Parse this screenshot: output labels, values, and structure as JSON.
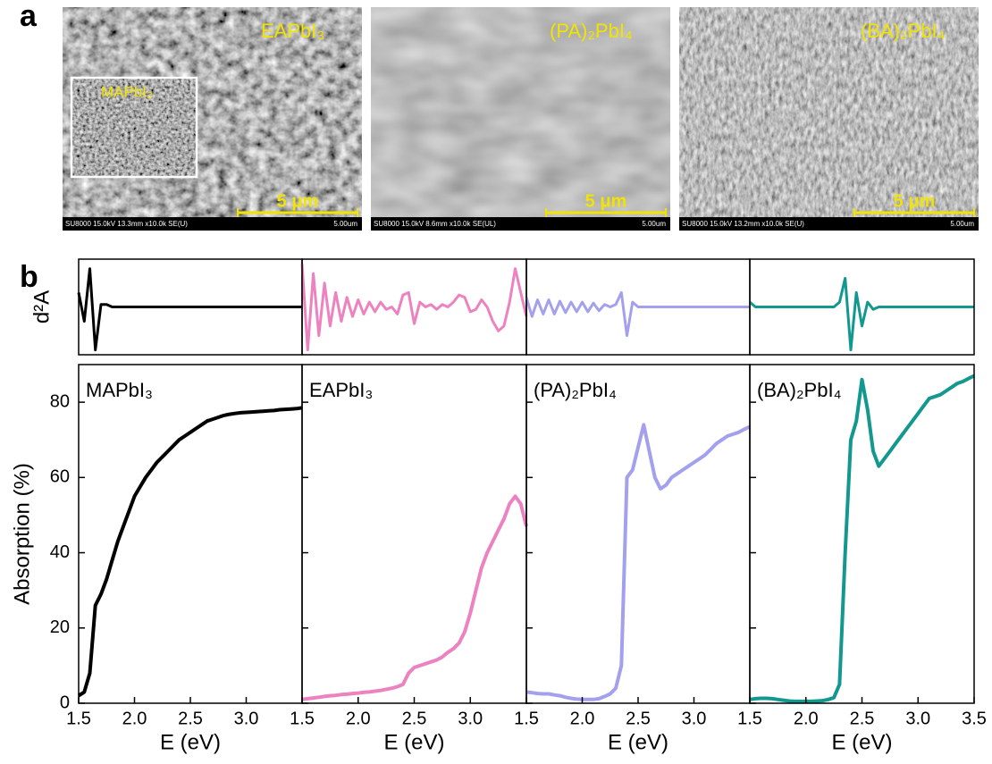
{
  "panel_labels": [
    "a",
    "b"
  ],
  "sem_images": [
    {
      "label": "EAPbI₃",
      "inset_label": "MAPbI₃",
      "scale_bar": "5 μm",
      "info": "SU8000 15.0kV 13.3mm x10.0k SE(U)",
      "info_right": "5.00um"
    },
    {
      "label": "(PA)₂PbI₄",
      "scale_bar": "5 μm",
      "info": "SU8000 15.0kV 8.6mm x10.0k SE(UL)",
      "info_right": "5.00um"
    },
    {
      "label": "(BA)₂PbI₄",
      "scale_bar": "5 μm",
      "info": "SU8000 15.0kV 13.2mm x10.0k SE(U)",
      "info_right": "5.00um"
    }
  ],
  "chart_data": [
    {
      "type": "line",
      "annotation": "MAPbI₃",
      "color": "#000000",
      "ylabel": "Absorption (%)",
      "d2a_label": "d²A",
      "xlabel": "E (eV)",
      "xlim": [
        1.5,
        3.5
      ],
      "xticks": [
        1.5,
        {
          "value": 2,
          "label": "2.0"
        },
        2.5,
        {
          "value": 3,
          "label": "3.0"
        }
      ],
      "ylim": [
        0,
        90
      ],
      "yticks": [
        0,
        20,
        40,
        60,
        80
      ],
      "d2a_ylim": [
        -1,
        1
      ],
      "x": [
        1.5,
        1.55,
        1.6,
        1.65,
        1.7,
        1.75,
        1.8,
        1.85,
        1.9,
        1.95,
        2.0,
        2.05,
        2.1,
        2.15,
        2.2,
        2.25,
        2.3,
        2.35,
        2.4,
        2.45,
        2.5,
        2.55,
        2.6,
        2.65,
        2.7,
        2.75,
        2.8,
        2.85,
        2.9,
        2.95,
        3.0,
        3.05,
        3.1,
        3.15,
        3.2,
        3.25,
        3.3,
        3.35,
        3.4,
        3.45,
        3.5
      ],
      "values": [
        2,
        3,
        8,
        26,
        29,
        33,
        38,
        43,
        47,
        51,
        55,
        57.5,
        60,
        62,
        64,
        65.5,
        67,
        68.5,
        70,
        71,
        72,
        73,
        74,
        75,
        75.5,
        76,
        76.5,
        76.8,
        77,
        77.2,
        77.3,
        77.4,
        77.5,
        77.6,
        77.7,
        77.8,
        78,
        78.1,
        78.2,
        78.3,
        78.5
      ],
      "d2a_values": [
        0.3,
        -0.3,
        0.8,
        -0.9,
        0.05,
        0.05,
        0,
        0,
        0,
        0,
        0,
        0,
        0,
        0,
        0,
        0,
        0,
        0,
        0,
        0,
        0,
        0,
        0,
        0,
        0,
        0,
        0,
        0,
        0,
        0,
        0,
        0,
        0,
        0,
        0,
        0,
        0,
        0,
        0,
        0,
        0
      ]
    },
    {
      "type": "line",
      "annotation": "EAPbI₃",
      "color": "#ec82c0",
      "xlabel": "E (eV)",
      "xlim": [
        1.5,
        3.5
      ],
      "xticks": [
        1.5,
        {
          "value": 2,
          "label": "2.0"
        },
        2.5,
        {
          "value": 3,
          "label": "3.0"
        }
      ],
      "ylim": [
        0,
        90
      ],
      "d2a_ylim": [
        -1,
        1
      ],
      "x": [
        1.5,
        1.55,
        1.6,
        1.65,
        1.7,
        1.75,
        1.8,
        1.85,
        1.9,
        1.95,
        2.0,
        2.05,
        2.1,
        2.15,
        2.2,
        2.25,
        2.3,
        2.35,
        2.4,
        2.45,
        2.5,
        2.55,
        2.6,
        2.65,
        2.7,
        2.75,
        2.8,
        2.85,
        2.9,
        2.95,
        3.0,
        3.05,
        3.1,
        3.15,
        3.2,
        3.25,
        3.3,
        3.35,
        3.4,
        3.45,
        3.5
      ],
      "values": [
        1,
        1.2,
        1.4,
        1.6,
        1.8,
        2,
        2.1,
        2.3,
        2.4,
        2.6,
        2.7,
        2.9,
        3,
        3.2,
        3.4,
        3.7,
        4,
        4.4,
        5,
        8,
        9.5,
        10,
        10.5,
        11,
        11.5,
        12.3,
        13.5,
        14.5,
        16,
        19,
        24,
        30,
        36,
        40,
        43,
        46,
        49,
        53,
        55,
        53,
        47
      ],
      "d2a_values": [
        0.9,
        -0.9,
        0.7,
        -0.6,
        0.5,
        -0.4,
        0.3,
        -0.3,
        0.2,
        -0.2,
        0.15,
        -0.15,
        0.1,
        -0.1,
        0.1,
        -0.05,
        0,
        -0.15,
        0.25,
        0.3,
        -0.35,
        0.1,
        0,
        0.05,
        -0.05,
        0.05,
        0,
        0.1,
        0.25,
        0.2,
        -0.1,
        -0.05,
        0.15,
        0,
        -0.3,
        -0.5,
        -0.4,
        0.1,
        0.8,
        0.3,
        -0.2
      ]
    },
    {
      "type": "line",
      "annotation": "(PA)₂PbI₄",
      "color": "#a3a0ee",
      "xlabel": "E (eV)",
      "xlim": [
        1.5,
        3.5
      ],
      "xticks": [
        1.5,
        {
          "value": 2,
          "label": "2.0"
        },
        2.5,
        {
          "value": 3,
          "label": "3.0"
        }
      ],
      "ylim": [
        0,
        90
      ],
      "d2a_ylim": [
        -1,
        1
      ],
      "x": [
        1.5,
        1.55,
        1.6,
        1.65,
        1.7,
        1.75,
        1.8,
        1.85,
        1.9,
        1.95,
        2.0,
        2.05,
        2.1,
        2.15,
        2.2,
        2.25,
        2.3,
        2.35,
        2.4,
        2.45,
        2.5,
        2.55,
        2.6,
        2.65,
        2.7,
        2.75,
        2.8,
        2.85,
        2.9,
        2.95,
        3.0,
        3.05,
        3.1,
        3.15,
        3.2,
        3.25,
        3.3,
        3.35,
        3.4,
        3.45,
        3.5
      ],
      "values": [
        3,
        2.8,
        2.6,
        2.5,
        2.5,
        2.2,
        2,
        1.6,
        1.3,
        1.1,
        1,
        1,
        1,
        1.2,
        1.8,
        2.5,
        4,
        10,
        60,
        62,
        68,
        74,
        67,
        60,
        57,
        58,
        60,
        61,
        62,
        63,
        64,
        65,
        66,
        67.5,
        69,
        70,
        71,
        71.5,
        72,
        72.8,
        73.5
      ],
      "d2a_values": [
        0.2,
        -0.2,
        0.15,
        -0.15,
        0.15,
        -0.15,
        0.12,
        -0.12,
        0.1,
        -0.1,
        0.1,
        -0.1,
        0.08,
        -0.08,
        0.05,
        0,
        0.05,
        0.3,
        -0.6,
        0.1,
        0,
        0,
        0,
        0,
        0,
        0,
        0,
        0,
        0,
        0,
        0,
        0,
        0,
        0,
        0,
        0,
        0,
        0,
        0,
        0,
        0
      ]
    },
    {
      "type": "line",
      "annotation": "(BA)₂PbI₄",
      "color": "#12988e",
      "xlabel": "E (eV)",
      "xlim": [
        1.5,
        3.5
      ],
      "xticks": [
        1.5,
        {
          "value": 2,
          "label": "2.0"
        },
        2.5,
        {
          "value": 3,
          "label": "3.0"
        },
        3.5
      ],
      "ylim": [
        0,
        90
      ],
      "d2a_ylim": [
        -1,
        1
      ],
      "x": [
        1.5,
        1.55,
        1.6,
        1.65,
        1.7,
        1.75,
        1.8,
        1.85,
        1.9,
        1.95,
        2.0,
        2.05,
        2.1,
        2.15,
        2.2,
        2.25,
        2.3,
        2.35,
        2.4,
        2.45,
        2.5,
        2.55,
        2.6,
        2.65,
        2.7,
        2.75,
        2.8,
        2.85,
        2.9,
        2.95,
        3.0,
        3.05,
        3.1,
        3.15,
        3.2,
        3.25,
        3.3,
        3.35,
        3.4,
        3.45,
        3.5
      ],
      "values": [
        1,
        1.2,
        1.3,
        1.3,
        1.2,
        1,
        0.8,
        0.6,
        0.5,
        0.5,
        0.5,
        0.5,
        0.6,
        0.7,
        1,
        1.5,
        5,
        40,
        70,
        75,
        86,
        78,
        67,
        63,
        65,
        67,
        69,
        71,
        73,
        75,
        77,
        79,
        81,
        81.5,
        82,
        83,
        84,
        85,
        85.5,
        86.3,
        87
      ],
      "d2a_values": [
        0.1,
        0,
        0,
        0,
        0,
        0,
        0,
        0,
        0,
        0,
        0,
        0,
        0,
        0,
        0,
        0,
        0.1,
        0.6,
        -0.9,
        0.3,
        -0.4,
        0.1,
        -0.05,
        0,
        0,
        0,
        0,
        0,
        0,
        0,
        0,
        0,
        0,
        0,
        0,
        0,
        0,
        0,
        0,
        0,
        0
      ]
    }
  ]
}
